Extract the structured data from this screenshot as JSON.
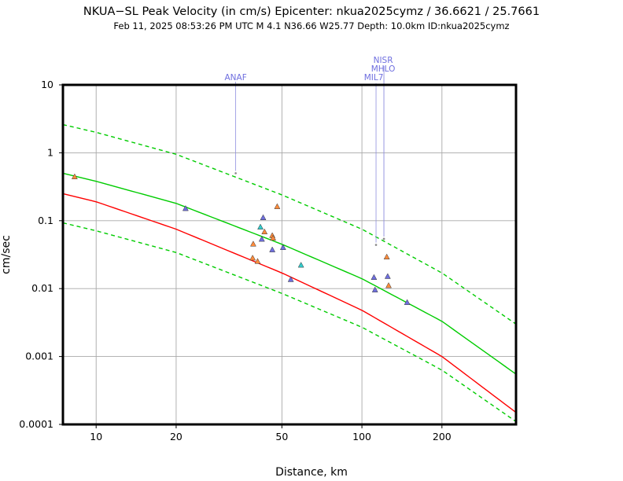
{
  "chart_data": {
    "type": "scatter",
    "title": "NKUA−SL Peak Velocity (in cm/s) Epicenter: nkua2025cymz / 36.6621 / 25.7661",
    "subtitle": "Feb 11, 2025 08:53:26 PM UTC   M 4.1   N36.66 W25.77   Depth: 10.0km   ID:nkua2025cymz",
    "xlabel": "Distance, km",
    "ylabel": "cm/sec",
    "xscale": "log",
    "yscale": "log",
    "xlim": [
      7.5,
      380
    ],
    "ylim": [
      0.0001,
      10
    ],
    "xticks": [
      {
        "value": 10,
        "label": "10"
      },
      {
        "value": 20,
        "label": "20"
      },
      {
        "value": 50,
        "label": "50"
      },
      {
        "value": 100,
        "label": "100"
      },
      {
        "value": 200,
        "label": "200"
      }
    ],
    "yticks": [
      {
        "value": 10,
        "label": "10"
      },
      {
        "value": 1,
        "label": "1"
      },
      {
        "value": 0.1,
        "label": "0.1"
      },
      {
        "value": 0.01,
        "label": "0.01"
      },
      {
        "value": 0.001,
        "label": "0.001"
      },
      {
        "value": 0.0001,
        "label": "0.0001"
      }
    ],
    "grid": true,
    "curves": [
      {
        "name": "gmpe-mean",
        "color": "#00cc00",
        "dash": false,
        "x": [
          7.5,
          10,
          20,
          50,
          100,
          200,
          380
        ],
        "y": [
          0.5,
          0.38,
          0.18,
          0.045,
          0.014,
          0.0033,
          0.00055
        ]
      },
      {
        "name": "gmpe-plus-sigma",
        "color": "#00cc00",
        "dash": true,
        "x": [
          7.5,
          10,
          20,
          50,
          100,
          200,
          380
        ],
        "y": [
          2.6,
          2.0,
          0.95,
          0.24,
          0.075,
          0.017,
          0.003
        ]
      },
      {
        "name": "gmpe-minus-sigma",
        "color": "#00cc00",
        "dash": true,
        "x": [
          7.5,
          10,
          20,
          50,
          100,
          200,
          380
        ],
        "y": [
          0.093,
          0.071,
          0.034,
          0.0085,
          0.0027,
          0.00063,
          0.00011
        ]
      },
      {
        "name": "reference-curve",
        "color": "#ff0000",
        "dash": false,
        "x": [
          7.5,
          10,
          20,
          50,
          100,
          200,
          380
        ],
        "y": [
          0.25,
          0.19,
          0.075,
          0.017,
          0.0048,
          0.001,
          0.00015
        ]
      }
    ],
    "series": [
      {
        "name": "seismic-stations",
        "color": "#6f6fdf",
        "points": [
          [
            21.7,
            0.15
          ],
          [
            42.5,
            0.11
          ],
          [
            42.0,
            0.053
          ],
          [
            46.0,
            0.037
          ],
          [
            50.5,
            0.04
          ],
          [
            54.0,
            0.0135
          ],
          [
            111.0,
            0.0145
          ],
          [
            125.0,
            0.015
          ],
          [
            112.0,
            0.0095
          ],
          [
            148.0,
            0.0062
          ]
        ]
      },
      {
        "name": "accelerograph-stations",
        "color": "#ff8c3c",
        "points": [
          [
            8.3,
            0.44
          ],
          [
            48.0,
            0.16
          ],
          [
            43.0,
            0.068
          ],
          [
            46.0,
            0.06
          ],
          [
            46.3,
            0.055
          ],
          [
            39.0,
            0.045
          ],
          [
            38.8,
            0.028
          ],
          [
            40.5,
            0.025
          ],
          [
            124.0,
            0.029
          ],
          [
            126.0,
            0.011
          ]
        ]
      },
      {
        "name": "other-stations",
        "color": "#33cccc",
        "points": [
          [
            41.5,
            0.08
          ],
          [
            59.0,
            0.022
          ]
        ]
      }
    ],
    "flagged": [
      {
        "label": "ANAF",
        "x": 33.5,
        "y": 0.5
      },
      {
        "label": "MIL7",
        "x": 113.0,
        "y": 0.044
      },
      {
        "label": "MHLO",
        "x": 121.0,
        "y": 0.054
      },
      {
        "label": "NISR",
        "x": 121.0,
        "y": 0.054
      }
    ]
  }
}
